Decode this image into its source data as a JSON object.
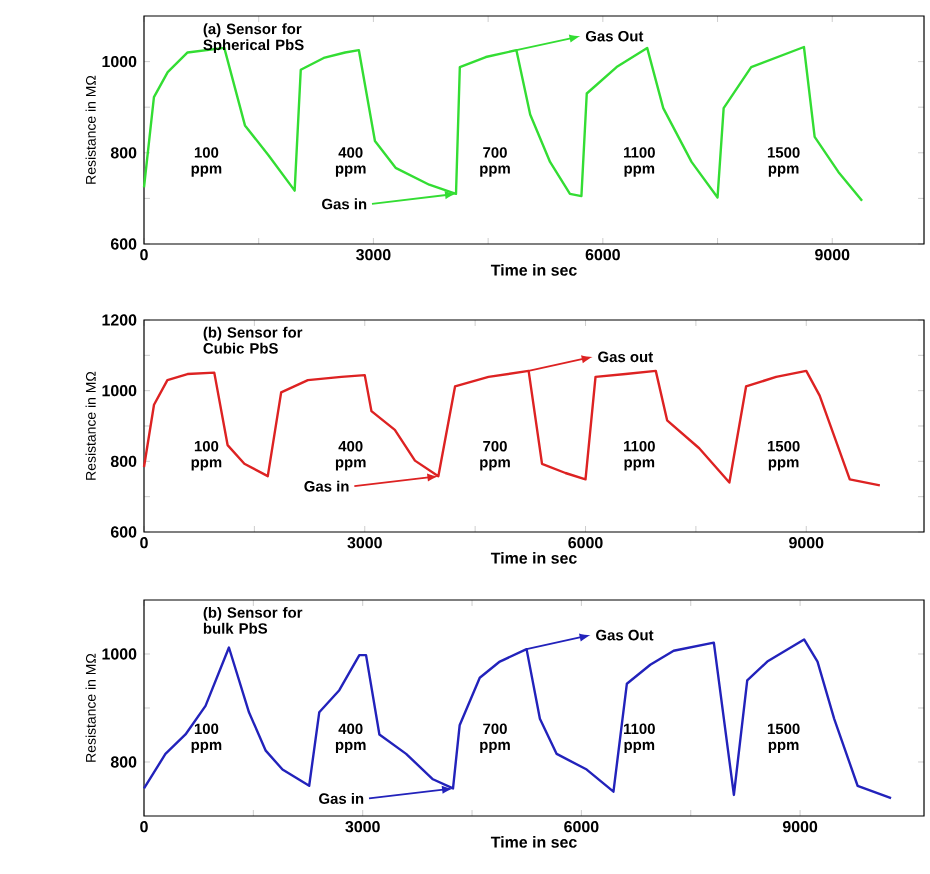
{
  "chart_data": [
    {
      "type": "line",
      "xlabel": "Time in sec",
      "ylabel": "Resistance in MΩ",
      "xlim": [
        0,
        10200
      ],
      "ylim": [
        600,
        1100
      ],
      "xticks": [
        0,
        {
          "value": 1500,
          "label": null
        },
        3000,
        {
          "value": 4500,
          "label": null
        },
        6000,
        {
          "value": 7500,
          "label": null
        },
        9000
      ],
      "yticks": [
        600,
        {
          "value": 700,
          "label": null
        },
        800,
        {
          "value": 900,
          "label": null
        },
        1000
      ],
      "series": [
        {
          "color": "#33dd33",
          "x": [
            0,
            130,
            310,
            570,
            1050,
            1320,
            1630,
            1970,
            2050,
            2350,
            2630,
            2810,
            3020,
            3290,
            3730,
            4080,
            4130,
            4470,
            4870,
            5050,
            5310,
            5570,
            5720,
            5790,
            6180,
            6580,
            6790,
            7160,
            7500,
            7580,
            7940,
            8630,
            8770,
            9080,
            9390
          ],
          "values": [
            724,
            922,
            977,
            1020,
            1030,
            860,
            794,
            717,
            982,
            1008,
            1020,
            1025,
            826,
            767,
            730,
            710,
            988,
            1010,
            1025,
            884,
            780,
            710,
            705,
            930,
            988,
            1030,
            898,
            780,
            702,
            898,
            988,
            1032,
            835,
            758,
            695
          ]
        }
      ],
      "annotations": [
        "(a) Sensor for Spherical PbS",
        "100 ppm",
        "400 ppm",
        "700 ppm",
        "1100 ppm",
        "1500 ppm",
        {
          "text": "Gas in",
          "x": 4080,
          "y": 710
        },
        {
          "text": "Gas Out",
          "x": 4870,
          "y": 1025
        }
      ]
    },
    {
      "type": "line",
      "xlabel": "Time in sec",
      "ylabel": "Resistance in MΩ",
      "xlim": [
        0,
        10600
      ],
      "ylim": [
        600,
        1200
      ],
      "xticks": [
        0,
        {
          "value": 1500,
          "label": null
        },
        3000,
        {
          "value": 4500,
          "label": null
        },
        6000,
        {
          "value": 7500,
          "label": null
        },
        9000
      ],
      "yticks": [
        600,
        {
          "value": 700,
          "label": null
        },
        800,
        {
          "value": 900,
          "label": null
        },
        1000,
        {
          "value": 1100,
          "label": null
        },
        1200
      ],
      "series": [
        {
          "color": "#dd2222",
          "x": [
            0,
            136,
            318,
            591,
            955,
            1136,
            1364,
            1682,
            1864,
            2227,
            2682,
            3000,
            3091,
            3409,
            3682,
            4000,
            4227,
            4682,
            5227,
            5409,
            5727,
            6000,
            6136,
            6545,
            6955,
            7109,
            7545,
            7955,
            8182,
            8591,
            9000,
            9182,
            9591,
            10000
          ],
          "values": [
            784,
            960,
            1030,
            1047,
            1051,
            846,
            793,
            758,
            995,
            1030,
            1039,
            1044,
            942,
            889,
            802,
            758,
            1012,
            1039,
            1056,
            793,
            767,
            749,
            1039,
            1047,
            1056,
            916,
            837,
            740,
            1012,
            1039,
            1056,
            986,
            749,
            732
          ]
        }
      ],
      "annotations": [
        "(b) Sensor for Cubic PbS",
        "100 ppm",
        "400 ppm",
        "700 ppm",
        "1100 ppm",
        "1500 ppm",
        {
          "text": "Gas in",
          "x": 4000,
          "y": 758
        },
        {
          "text": "Gas out",
          "x": 5227,
          "y": 1056
        }
      ]
    },
    {
      "type": "line",
      "xlabel": "Time in sec",
      "ylabel": "Resistance in MΩ",
      "xlim": [
        0,
        10700
      ],
      "ylim": [
        700,
        1100
      ],
      "xticks": [
        0,
        {
          "value": 1500,
          "label": null
        },
        3000,
        {
          "value": 4500,
          "label": null
        },
        6000,
        {
          "value": 7500,
          "label": null
        },
        9000
      ],
      "yticks": [
        800,
        {
          "value": 900,
          "label": null
        },
        1000
      ],
      "series": [
        {
          "color": "#2222bb",
          "x": [
            0,
            294,
            569,
            844,
            1165,
            1440,
            1670,
            1900,
            2266,
            2404,
            2679,
            2954,
            3046,
            3229,
            3596,
            3963,
            4239,
            4330,
            4606,
            4881,
            5248,
            5431,
            5661,
            6073,
            6440,
            6624,
            6945,
            7266,
            7817,
            8092,
            8275,
            8550,
            9055,
            9239,
            9468,
            9789,
            10248
          ],
          "values": [
            751,
            815,
            851,
            904,
            1012,
            892,
            821,
            786,
            756,
            892,
            933,
            998,
            998,
            851,
            815,
            768,
            751,
            868,
            956,
            986,
            1009,
            880,
            815,
            786,
            745,
            945,
            980,
            1006,
            1021,
            739,
            951,
            986,
            1027,
            986,
            880,
            756,
            733
          ]
        }
      ],
      "annotations": [
        "(b) Sensor for bulk PbS",
        "100 ppm",
        "400 ppm",
        "700 ppm",
        "1100 ppm",
        "1500 ppm",
        {
          "text": "Gas in",
          "x": 4239,
          "y": 751
        },
        {
          "text": "Gas Out",
          "x": 5248,
          "y": 1009
        }
      ]
    }
  ]
}
